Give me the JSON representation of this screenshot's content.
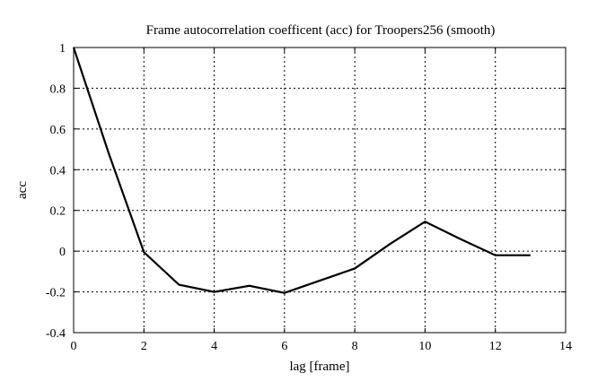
{
  "chart_data": {
    "type": "line",
    "title": "Frame autocorrelation coefficent (acc) for Troopers256 (smooth)",
    "xlabel": "lag [frame]",
    "ylabel": "acc",
    "xlim": [
      0,
      14
    ],
    "ylim": [
      -0.4,
      1
    ],
    "grid": true,
    "x_ticks": [
      0,
      2,
      4,
      6,
      8,
      10,
      12,
      14
    ],
    "y_ticks": [
      -0.4,
      -0.2,
      0,
      0.2,
      0.4,
      0.6,
      0.8,
      1
    ],
    "x_tick_labels": [
      "0",
      "2",
      "4",
      "6",
      "8",
      "10",
      "12",
      "14"
    ],
    "y_tick_labels": [
      "-0.4",
      "-0.2",
      "0",
      "0.2",
      "0.4",
      "0.6",
      "0.8",
      "1"
    ],
    "series": [
      {
        "x": [
          0,
          1,
          2,
          3,
          4,
          5,
          6,
          7,
          8,
          9,
          10,
          11,
          12,
          13
        ],
        "values": [
          1.0,
          0.48,
          -0.005,
          -0.165,
          -0.2,
          -0.17,
          -0.205,
          -0.145,
          -0.085,
          0.035,
          0.145,
          0.06,
          -0.02,
          -0.02
        ],
        "color": "#000000"
      }
    ]
  }
}
